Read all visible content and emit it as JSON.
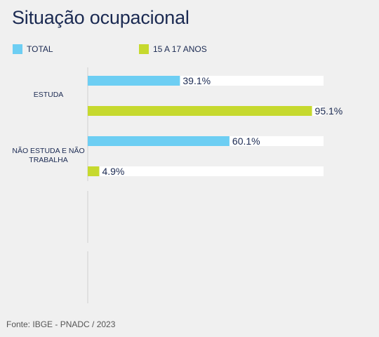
{
  "title": "Situação ocupacional",
  "footer": "Fonte: IBGE - PNADC / 2023",
  "colors": {
    "total": "#6dcef3",
    "teen": "#c6d92e",
    "track": "#ffffff",
    "text": "#1b2a52"
  },
  "chart_data": {
    "type": "bar",
    "orientation": "horizontal",
    "title": "Situação ocupacional",
    "categories": [
      "ESTUDA",
      "NÃO ESTUDA E NÃO TRABALHA"
    ],
    "series": [
      {
        "name": "TOTAL",
        "values": [
          39.1,
          60.1
        ],
        "labels": [
          "39.1%",
          "60.1%"
        ],
        "color": "#6dcef3"
      },
      {
        "name": "15 A 17 ANOS",
        "values": [
          95.1,
          4.9
        ],
        "labels": [
          "95.1%",
          "4.9%"
        ],
        "color": "#c6d92e"
      }
    ],
    "xlim": [
      0,
      100
    ],
    "legend": "top",
    "grid": false
  }
}
